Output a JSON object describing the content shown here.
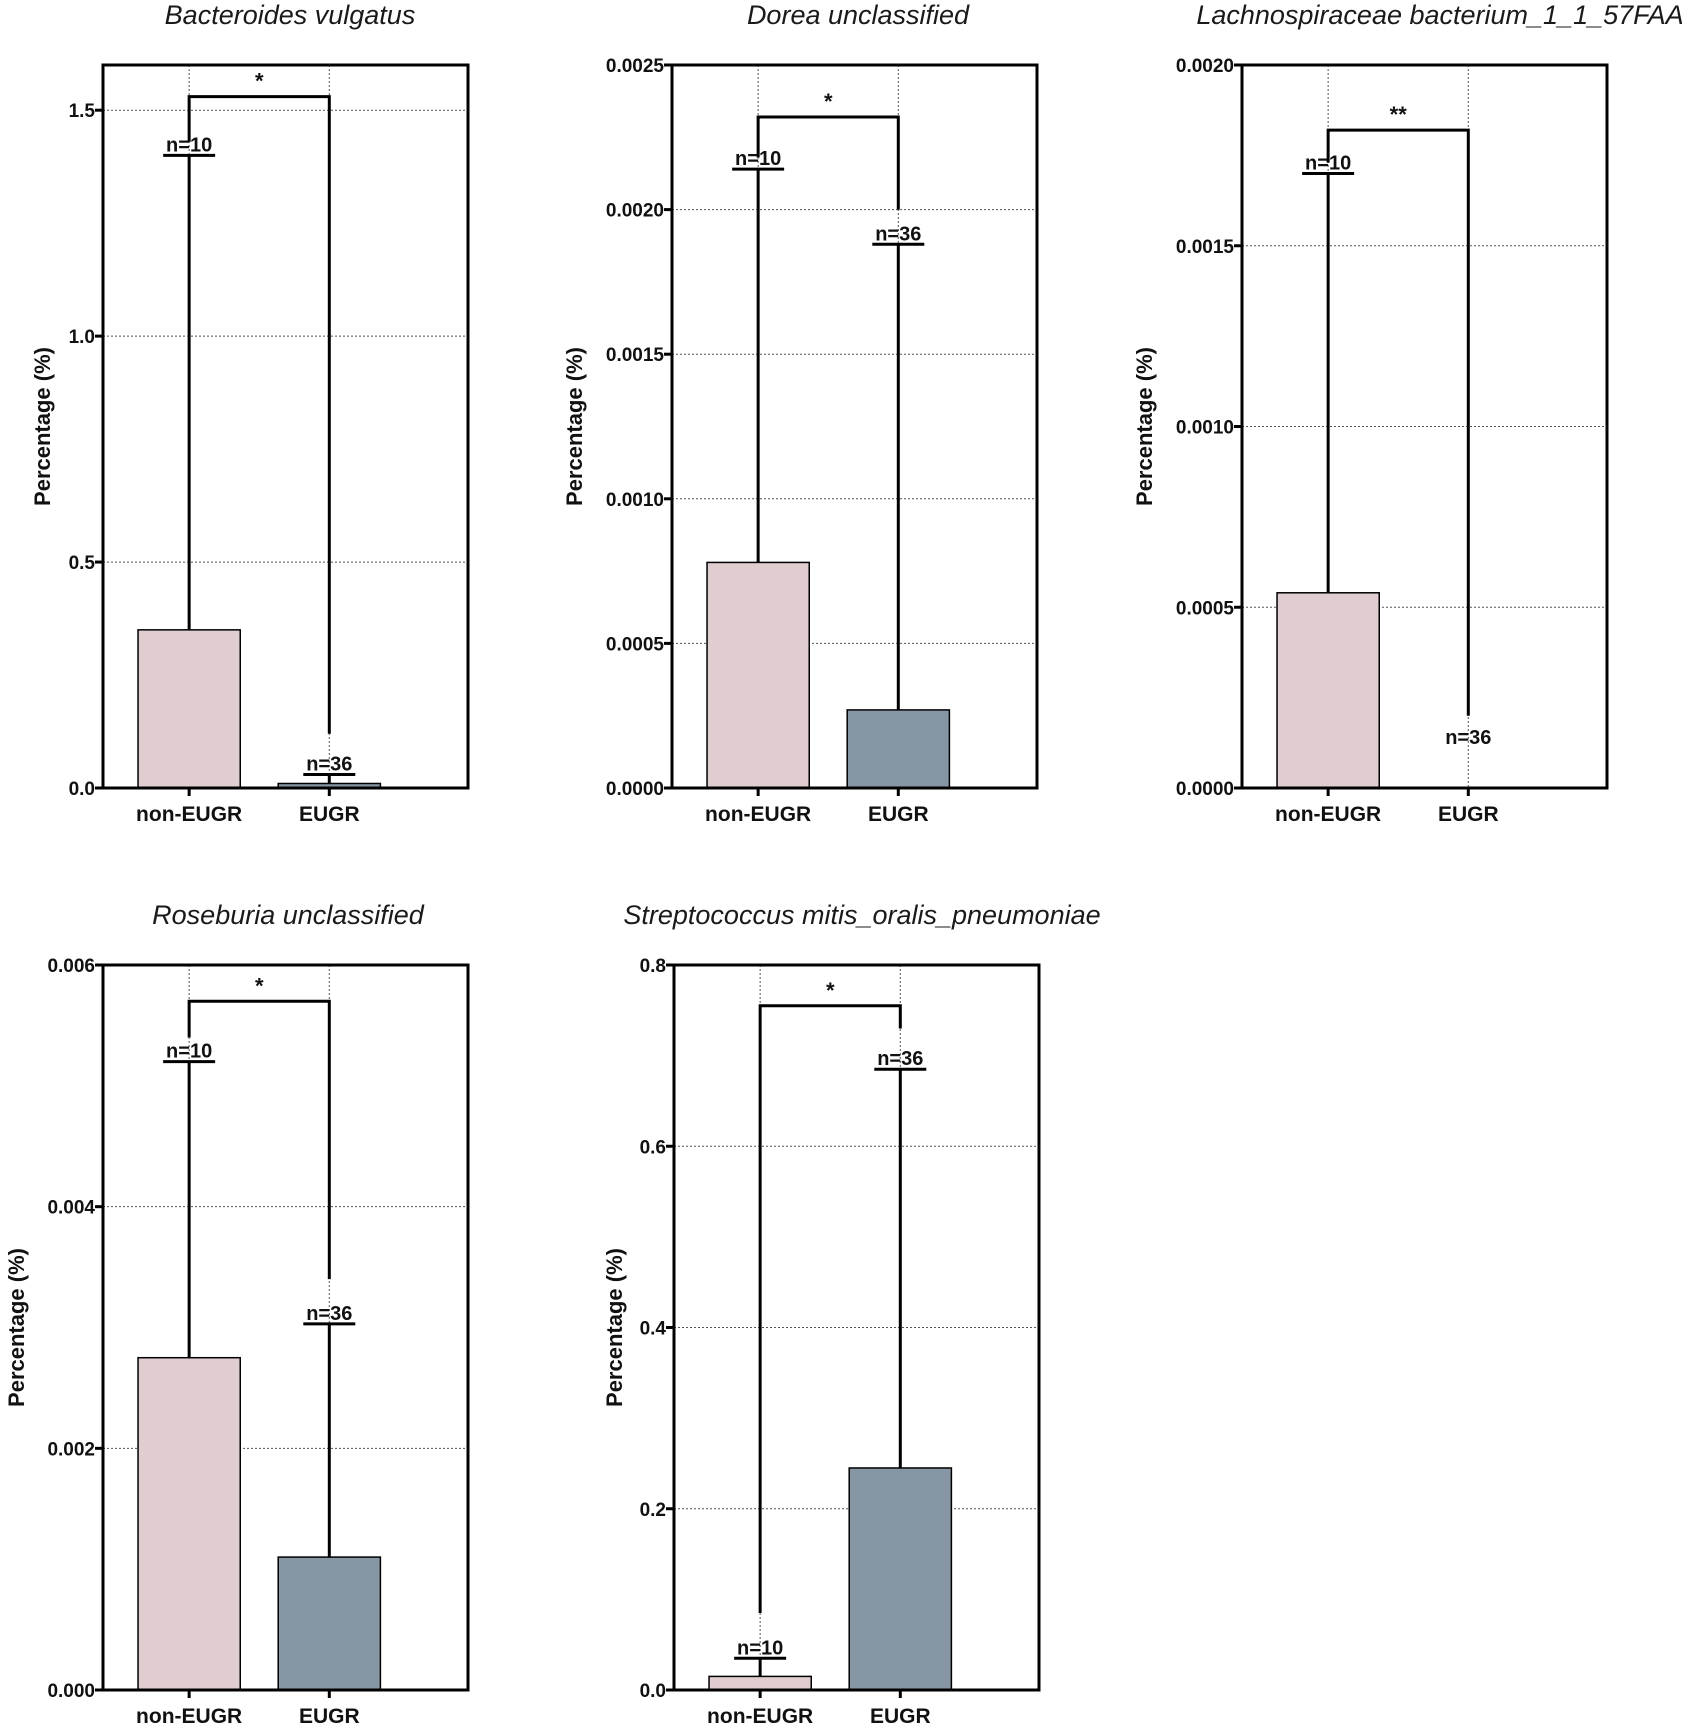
{
  "colors": {
    "non_eugr": "#dfcdcf",
    "eugr": "#8796a4",
    "axis": "#000000",
    "grid": "#555555"
  },
  "chart_data": [
    {
      "type": "bar",
      "title": "Bacteroides vulgatus",
      "ylabel": "Percentage (%)",
      "categories": [
        "non-EUGR",
        "EUGR"
      ],
      "values": [
        0.35,
        0.01
      ],
      "error_upper": [
        1.4,
        0.03
      ],
      "n_labels": [
        "n=10",
        "n=36"
      ],
      "ylim": [
        0,
        1.6
      ],
      "yticks": [
        0.0,
        0.5,
        1.0,
        1.5
      ],
      "yticklabels": [
        "0.0",
        "0.5",
        "1.0",
        "1.5"
      ],
      "significance": "*",
      "bracket_y": 1.53,
      "bracket_left_drop": 1.43,
      "bracket_right_drop": 0.12,
      "grid": true
    },
    {
      "type": "bar",
      "title": "Dorea unclassified",
      "ylabel": "Percentage (%)",
      "categories": [
        "non-EUGR",
        "EUGR"
      ],
      "values": [
        0.00078,
        0.00027
      ],
      "error_upper": [
        0.00214,
        0.00188
      ],
      "n_labels": [
        "n=10",
        "n=36"
      ],
      "ylim": [
        0,
        0.0025
      ],
      "yticks": [
        0,
        0.0005,
        0.001,
        0.0015,
        0.002,
        0.0025
      ],
      "yticklabels": [
        "0.0000",
        "0.0005",
        "0.0010",
        "0.0015",
        "0.0020",
        "0.0025"
      ],
      "significance": "*",
      "bracket_y": 0.00232,
      "bracket_left_drop": 0.00218,
      "bracket_right_drop": 0.002,
      "grid": true
    },
    {
      "type": "bar",
      "title": "Lachnospiraceae bacterium_1_1_57FAA",
      "ylabel": "Percentage (%)",
      "categories": [
        "non-EUGR",
        "EUGR"
      ],
      "values": [
        0.00054,
        0.0
      ],
      "error_upper": [
        0.0017,
        null
      ],
      "n_labels": [
        "n=10",
        "n=36"
      ],
      "ylim": [
        0,
        0.002
      ],
      "yticks": [
        0,
        0.0005,
        0.001,
        0.0015,
        0.002
      ],
      "yticklabels": [
        "0.0000",
        "0.0005",
        "0.0010",
        "0.0015",
        "0.0020"
      ],
      "significance": "**",
      "bracket_y": 0.00182,
      "bracket_left_drop": 0.00173,
      "bracket_right_drop": 0.0002,
      "grid": true
    },
    {
      "type": "bar",
      "title": "Roseburia unclassified",
      "ylabel": "Percentage (%)",
      "categories": [
        "non-EUGR",
        "EUGR"
      ],
      "values": [
        0.00275,
        0.0011
      ],
      "error_upper": [
        0.0052,
        0.00303
      ],
      "n_labels": [
        "n=10",
        "n=36"
      ],
      "ylim": [
        0,
        0.006
      ],
      "yticks": [
        0,
        0.002,
        0.004,
        0.006
      ],
      "yticklabels": [
        "0.000",
        "0.002",
        "0.004",
        "0.006"
      ],
      "significance": "*",
      "bracket_y": 0.0057,
      "bracket_left_drop": 0.0054,
      "bracket_right_drop": 0.0034,
      "grid": true
    },
    {
      "type": "bar",
      "title": "Streptococcus mitis_oralis_pneumoniae",
      "ylabel": "Percentage (%)",
      "categories": [
        "non-EUGR",
        "EUGR"
      ],
      "values": [
        0.015,
        0.245
      ],
      "error_upper": [
        0.035,
        0.685
      ],
      "n_labels": [
        "n=10",
        "n=36"
      ],
      "ylim": [
        0,
        0.8
      ],
      "yticks": [
        0,
        0.2,
        0.4,
        0.6,
        0.8
      ],
      "yticklabels": [
        "0.0",
        "0.2",
        "0.4",
        "0.6",
        "0.8"
      ],
      "significance": "*",
      "bracket_y": 0.755,
      "bracket_left_drop": 0.085,
      "bracket_right_drop": 0.73,
      "grid": true
    }
  ]
}
